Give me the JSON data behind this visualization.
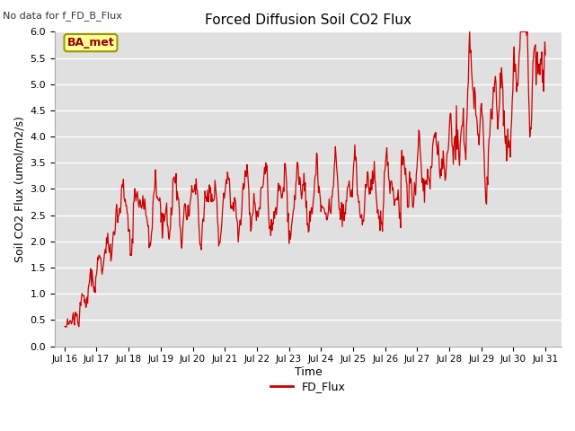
{
  "title": "Forced Diffusion Soil CO2 Flux",
  "ylabel": "Soil CO2 Flux (umol/m2/s)",
  "xlabel": "Time",
  "top_left_text": "No data for f_FD_B_Flux",
  "legend_label": "FD_Flux",
  "box_label": "BA_met",
  "ylim": [
    0.0,
    6.0
  ],
  "yticks": [
    0.0,
    0.5,
    1.0,
    1.5,
    2.0,
    2.5,
    3.0,
    3.5,
    4.0,
    4.5,
    5.0,
    5.5,
    6.0
  ],
  "xtick_labels": [
    "Jul 16",
    "Jul 17",
    "Jul 18",
    "Jul 19",
    "Jul 20",
    "Jul 21",
    "Jul 22",
    "Jul 23",
    "Jul 24",
    "Jul 25",
    "Jul 26",
    "Jul 27",
    "Jul 28",
    "Jul 29",
    "Jul 30",
    "Jul 31"
  ],
  "line_color": "#cc0000",
  "bg_color": "#e0e0e0",
  "grid_color": "#ffffff",
  "box_facecolor": "#ffff99",
  "box_edgecolor": "#999900",
  "box_text_color": "#990000",
  "top_text_color": "#333333",
  "figsize": [
    6.4,
    4.8
  ],
  "dpi": 100
}
